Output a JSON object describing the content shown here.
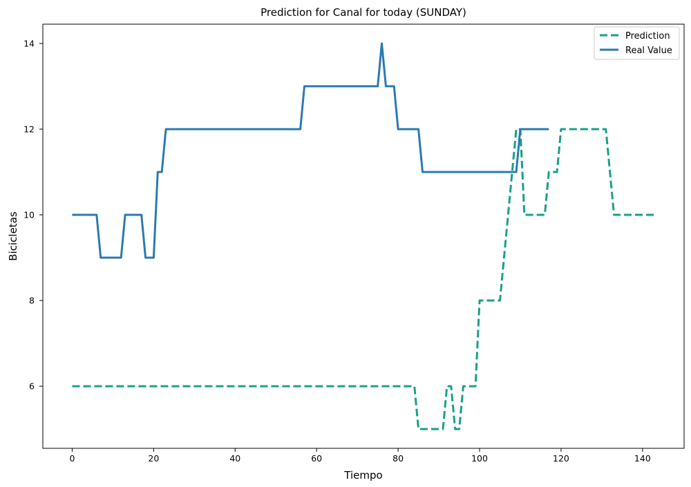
{
  "chart_data": {
    "type": "line",
    "title": "Prediction for Canal for today (SUNDAY)",
    "xlabel": "Tiempo",
    "ylabel": "Bicicletas",
    "xlim": [
      -7.2,
      150.2
    ],
    "ylim": [
      4.55,
      14.45
    ],
    "xticks": [
      0,
      20,
      40,
      60,
      80,
      100,
      120,
      140
    ],
    "yticks": [
      6,
      8,
      10,
      12,
      14
    ],
    "grid": false,
    "legend_position": "top-right",
    "series": [
      {
        "name": "Prediction",
        "color": "#17a185",
        "style": "dashed",
        "x": [
          0,
          84,
          85,
          91,
          92,
          93,
          94,
          95,
          96,
          99,
          100,
          105,
          106,
          107,
          108,
          109,
          110,
          111,
          116,
          117,
          118,
          119,
          120,
          131,
          132,
          133,
          143
        ],
        "y": [
          6,
          6,
          5,
          5,
          6,
          6,
          5,
          5,
          6,
          6,
          8,
          8,
          9,
          10,
          11,
          12,
          12,
          10,
          10,
          11,
          11,
          11,
          12,
          12,
          11,
          10,
          10
        ]
      },
      {
        "name": "Real Value",
        "color": "#2a7ab0",
        "style": "solid",
        "x": [
          0,
          6,
          7,
          12,
          13,
          17,
          18,
          20,
          21,
          22,
          23,
          56,
          57,
          75,
          76,
          77,
          79,
          80,
          85,
          86,
          108,
          109,
          110,
          117
        ],
        "y": [
          10,
          10,
          9,
          9,
          10,
          10,
          9,
          9,
          11,
          11,
          12,
          12,
          13,
          13,
          14,
          13,
          13,
          12,
          12,
          11,
          11,
          11,
          12,
          12
        ]
      }
    ]
  }
}
